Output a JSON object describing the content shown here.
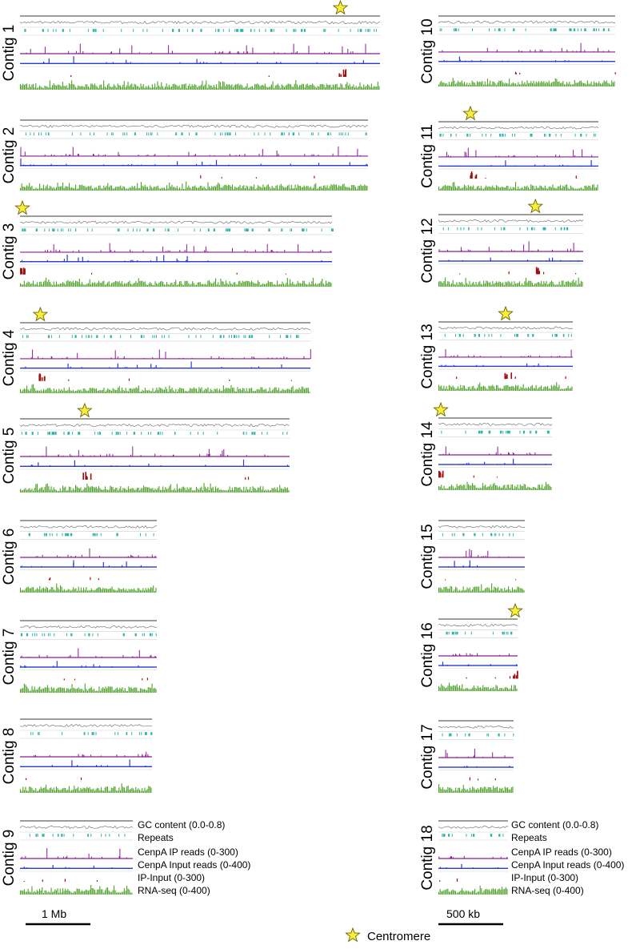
{
  "colors": {
    "gc": "#7a7a7a",
    "repeats": "#2bb5a5",
    "cenpa_ip": "#8b1f8f",
    "cenpa_input": "#2b3bd6",
    "ip_input": "#a01010",
    "rna_seq": "#4ea12a",
    "star_fill": "#f7ee3a",
    "star_stroke": "#6b6200"
  },
  "contigs": [
    {
      "label": "Contig 1",
      "centromere": 0.89
    },
    {
      "label": "Contig 2",
      "centromere": null
    },
    {
      "label": "Contig 3",
      "centromere": 0.0
    },
    {
      "label": "Contig 4",
      "centromere": 0.07
    },
    {
      "label": "Contig 5",
      "centromere": 0.24
    },
    {
      "label": "Contig 6",
      "centromere": null
    },
    {
      "label": "Contig 7",
      "centromere": null
    },
    {
      "label": "Contig 8",
      "centromere": null
    },
    {
      "label": "Contig 9",
      "centromere": null
    },
    {
      "label": "Contig 10",
      "centromere": null
    },
    {
      "label": "Contig 11",
      "centromere": 0.2
    },
    {
      "label": "Contig 12",
      "centromere": 0.67
    },
    {
      "label": "Contig 13",
      "centromere": 0.5
    },
    {
      "label": "Contig 14",
      "centromere": 0.0
    },
    {
      "label": "Contig 15",
      "centromere": null
    },
    {
      "label": "Contig 16",
      "centromere": 0.97
    },
    {
      "label": "Contig 17",
      "centromere": null
    },
    {
      "label": "Contig 18",
      "centromere": null
    }
  ],
  "track_labels": [
    "GC content (0.0-0.8)",
    "Repeats",
    "CenpA IP reads (0-300)",
    "CenpA Input reads (0-400)",
    "IP-Input (0-300)",
    "RNA-seq (0-400)"
  ],
  "scale_bars": {
    "left": "1 Mb",
    "right": "500 kb"
  },
  "legend": {
    "label": "Centromere",
    "icon": "star-icon"
  }
}
